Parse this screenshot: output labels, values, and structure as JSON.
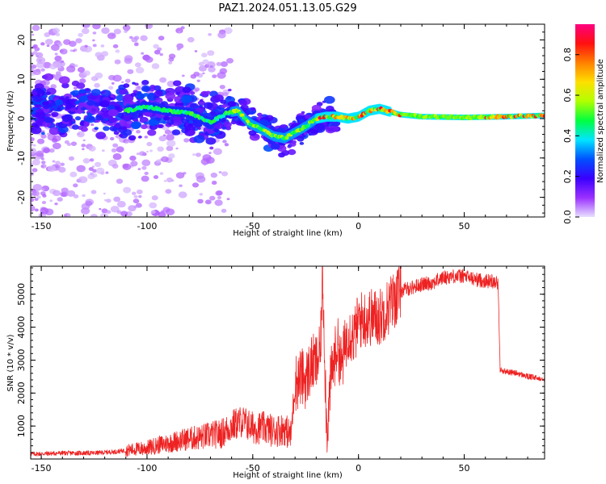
{
  "title": "PAZ1.2024.051.13.05.G29",
  "chart_data": [
    {
      "type": "heatmap",
      "xlabel": "Height of straight line (km)",
      "ylabel": "Frequency (Hz)",
      "xlim": [
        -155,
        88
      ],
      "ylim": [
        -25,
        24
      ],
      "xticks": [
        -150,
        -100,
        -50,
        0,
        50
      ],
      "yticks": [
        -20,
        -10,
        0,
        10,
        20
      ],
      "colorbar": {
        "label": "Normalized spectral amplitude",
        "range": [
          0.0,
          0.95
        ],
        "ticks": [
          0.0,
          0.2,
          0.4,
          0.6,
          0.8
        ],
        "colors": [
          "#e8e0ff",
          "#9b30ff",
          "#3a00ff",
          "#0050ff",
          "#00e5ff",
          "#00ff40",
          "#b0ff00",
          "#ffe000",
          "#ff8000",
          "#ff1010",
          "#ff0080"
        ]
      },
      "ridge": {
        "x": [
          -155,
          -140,
          -125,
          -110,
          -100,
          -90,
          -80,
          -70,
          -62,
          -57,
          -52,
          -45,
          -40,
          -35,
          -30,
          -25,
          -20,
          -15,
          -10,
          -5,
          0,
          5,
          10,
          20,
          30,
          50,
          70,
          88
        ],
        "y": [
          2.5,
          2.5,
          3,
          2,
          3,
          2,
          1.5,
          -1,
          1.5,
          2,
          -1,
          -3,
          -4.5,
          -5,
          -3.5,
          -2,
          0,
          0.5,
          0.5,
          0,
          0.5,
          2,
          2.5,
          1,
          0.5,
          0.3,
          0.5,
          0.8
        ]
      }
    },
    {
      "type": "line",
      "xlabel": "Height of straight line (km)",
      "ylabel": "SNR (10 * v/v)",
      "xlim": [
        -155,
        88
      ],
      "ylim": [
        0,
        5850
      ],
      "xticks": [
        -150,
        -100,
        -50,
        0,
        50
      ],
      "yticks": [
        1000,
        2000,
        3000,
        4000,
        5000
      ],
      "series": [
        {
          "color": "#ee2222",
          "x": [
            -155,
            -140,
            -125,
            -115,
            -105,
            -100,
            -95,
            -90,
            -85,
            -80,
            -75,
            -70,
            -65,
            -60,
            -55,
            -50,
            -45,
            -40,
            -35,
            -32,
            -30,
            -27,
            -25,
            -22,
            -20,
            -18,
            -17,
            -15,
            -13,
            -10,
            -8,
            -5,
            -2,
            0,
            5,
            10,
            15,
            20,
            25,
            30,
            35,
            40,
            45,
            50,
            55,
            60,
            65,
            66,
            67,
            70,
            75,
            80,
            85,
            88
          ],
          "y": [
            150,
            180,
            180,
            220,
            300,
            330,
            420,
            480,
            560,
            620,
            650,
            730,
            760,
            1000,
            1150,
            950,
            950,
            850,
            920,
            700,
            2300,
            2500,
            2400,
            2900,
            2900,
            3200,
            5700,
            800,
            2500,
            3500,
            2800,
            3900,
            3700,
            4200,
            4300,
            4300,
            4700,
            5100,
            5200,
            5300,
            5350,
            5500,
            5550,
            5550,
            5450,
            5400,
            5400,
            5300,
            2700,
            2650,
            2600,
            2500,
            2450,
            2450
          ]
        }
      ]
    }
  ]
}
